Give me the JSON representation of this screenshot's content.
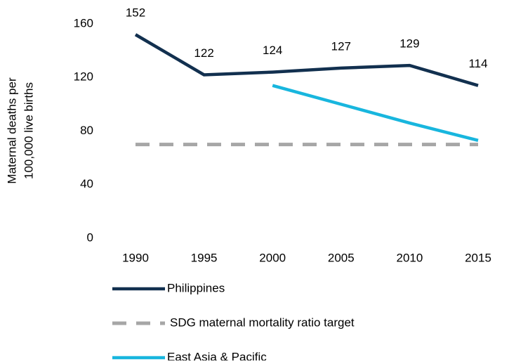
{
  "chart_data": {
    "type": "line",
    "ylabel": [
      "Maternal deaths per",
      "100,000 live births"
    ],
    "categories": [
      "1990",
      "1995",
      "2000",
      "2005",
      "2010",
      "2015"
    ],
    "series": [
      {
        "name": "Philippines",
        "color": "#12304f",
        "values": [
          152,
          122,
          124,
          127,
          129,
          114
        ],
        "data_labels": true
      },
      {
        "name": "SDG maternal mortality ratio target",
        "color": "#a6a6a6",
        "values": [
          70,
          70,
          70,
          70,
          70,
          70
        ],
        "dashed": true
      },
      {
        "name": "East Asia & Pacific",
        "color": "#18b6de",
        "values": [
          null,
          null,
          114,
          100,
          86,
          73
        ]
      }
    ],
    "ylim": [
      0,
      160
    ],
    "yticks": [
      0,
      40,
      80,
      120,
      160
    ],
    "grid": false
  }
}
